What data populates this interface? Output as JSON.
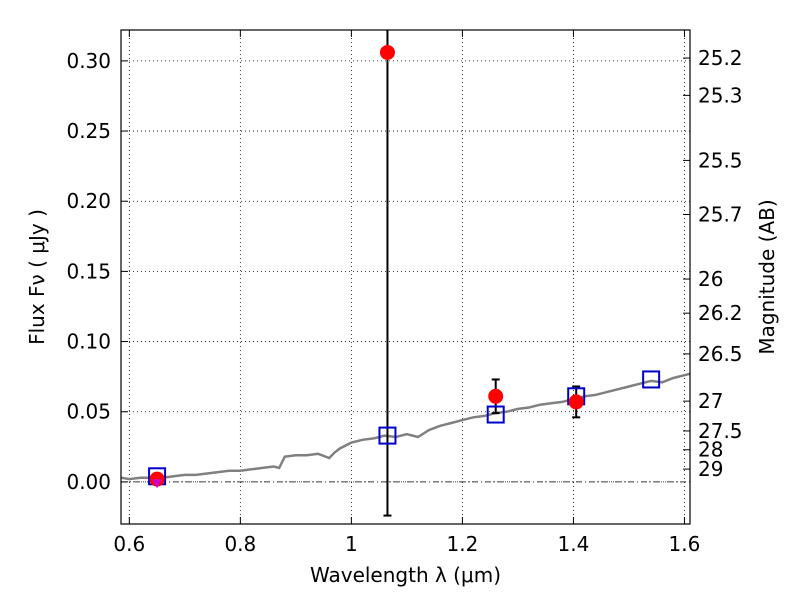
{
  "chart_data": {
    "type": "scatter",
    "xlabel": "Wavelength  λ (μm)",
    "ylabel": "Flux  Fν  ( μJy )",
    "y2label": "Magnitude (AB)",
    "xlim": [
      0.585,
      1.61
    ],
    "ylim": [
      -0.03,
      0.322
    ],
    "xticks": [
      {
        "value": 0.6,
        "label": "0.6"
      },
      {
        "value": 0.8,
        "label": "0.8"
      },
      {
        "value": 1.0,
        "label": "1"
      },
      {
        "value": 1.2,
        "label": "1.2"
      },
      {
        "value": 1.4,
        "label": "1.4"
      },
      {
        "value": 1.6,
        "label": "1.6"
      }
    ],
    "yticks": [
      {
        "value": 0.0,
        "label": "0.00"
      },
      {
        "value": 0.05,
        "label": "0.05"
      },
      {
        "value": 0.1,
        "label": "0.10"
      },
      {
        "value": 0.15,
        "label": "0.15"
      },
      {
        "value": 0.2,
        "label": "0.20"
      },
      {
        "value": 0.25,
        "label": "0.25"
      },
      {
        "value": 0.3,
        "label": "0.30"
      }
    ],
    "y2ticks": [
      {
        "value": 25.2,
        "label": "25.2"
      },
      {
        "value": 25.3,
        "label": "25.3"
      },
      {
        "value": 25.5,
        "label": "25.5"
      },
      {
        "value": 25.7,
        "label": "25.7"
      },
      {
        "value": 26,
        "label": "26"
      },
      {
        "value": 26.2,
        "label": "26.2"
      },
      {
        "value": 26.5,
        "label": "26.5"
      },
      {
        "value": 27,
        "label": "27"
      },
      {
        "value": 27.5,
        "label": "27.5"
      },
      {
        "value": 28,
        "label": "28"
      },
      {
        "value": 29,
        "label": "29"
      }
    ],
    "grid": true,
    "colors": {
      "observed": "#ff0000",
      "model": "#0000cc",
      "sed": "#808080",
      "errorbar": "#000000",
      "nondetection": "#cc00cc",
      "zeroline": "#000000"
    },
    "observed": [
      {
        "x": 0.65,
        "y": 0.002,
        "err": 0.003
      },
      {
        "x": 1.065,
        "y": 0.306,
        "err": 0.33
      },
      {
        "x": 1.26,
        "y": 0.061,
        "err": 0.012
      },
      {
        "x": 1.405,
        "y": 0.057,
        "err": 0.011
      }
    ],
    "nondetections": [
      {
        "x": 0.65,
        "y": -0.001
      }
    ],
    "model_photometry": [
      {
        "x": 0.65,
        "y": 0.004
      },
      {
        "x": 1.065,
        "y": 0.033
      },
      {
        "x": 1.26,
        "y": 0.048
      },
      {
        "x": 1.405,
        "y": 0.061
      },
      {
        "x": 1.54,
        "y": 0.073
      }
    ],
    "sed": {
      "x": [
        0.585,
        0.6,
        0.62,
        0.64,
        0.66,
        0.68,
        0.7,
        0.72,
        0.74,
        0.76,
        0.78,
        0.8,
        0.82,
        0.84,
        0.86,
        0.87,
        0.88,
        0.9,
        0.92,
        0.94,
        0.96,
        0.97,
        0.98,
        1.0,
        1.02,
        1.04,
        1.06,
        1.08,
        1.1,
        1.12,
        1.14,
        1.16,
        1.18,
        1.2,
        1.22,
        1.24,
        1.26,
        1.28,
        1.3,
        1.32,
        1.34,
        1.36,
        1.38,
        1.4,
        1.42,
        1.44,
        1.46,
        1.48,
        1.5,
        1.52,
        1.54,
        1.56,
        1.58,
        1.6,
        1.61
      ],
      "y": [
        0.003,
        0.002,
        0.003,
        0.003,
        0.003,
        0.004,
        0.005,
        0.005,
        0.006,
        0.007,
        0.008,
        0.008,
        0.009,
        0.01,
        0.011,
        0.01,
        0.018,
        0.019,
        0.019,
        0.02,
        0.017,
        0.021,
        0.024,
        0.028,
        0.03,
        0.031,
        0.033,
        0.032,
        0.034,
        0.032,
        0.037,
        0.04,
        0.042,
        0.044,
        0.046,
        0.047,
        0.049,
        0.05,
        0.052,
        0.053,
        0.055,
        0.056,
        0.057,
        0.059,
        0.061,
        0.062,
        0.064,
        0.066,
        0.068,
        0.07,
        0.072,
        0.071,
        0.074,
        0.076,
        0.077
      ]
    }
  }
}
